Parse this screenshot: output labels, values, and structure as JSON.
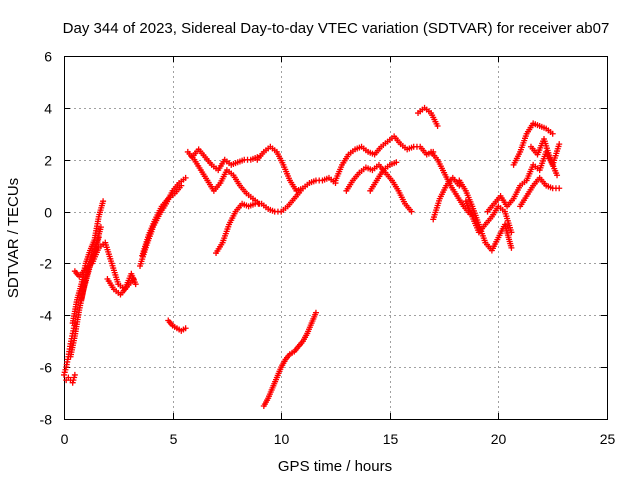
{
  "chart_data": {
    "type": "scatter",
    "title": "Day 344 of 2023, Sidereal Day-to-day VTEC variation (SDTVAR) for receiver ab07",
    "xlabel": "GPS time / hours",
    "ylabel": "SDTVAR / TECUs",
    "xlim": [
      0,
      25
    ],
    "ylim": [
      -8,
      6
    ],
    "xticks": [
      0,
      5,
      10,
      15,
      20,
      25
    ],
    "yticks": [
      -8,
      -6,
      -4,
      -2,
      0,
      2,
      4,
      6
    ],
    "xtick_labels": [
      "0",
      "5",
      "10",
      "15",
      "20",
      "25"
    ],
    "ytick_labels": [
      "-8",
      "-6",
      "-4",
      "-2",
      "0",
      "2",
      "4",
      "6"
    ],
    "grid": true,
    "marker": "+",
    "color": "#ff0000",
    "series": [
      {
        "name": "seg01",
        "x": [
          0.0,
          0.1,
          0.2,
          0.3,
          0.4,
          0.5
        ],
        "y": [
          -6.3,
          -6.0,
          -5.6,
          -5.1,
          -4.7,
          -4.3
        ]
      },
      {
        "name": "seg02",
        "x": [
          0.1,
          0.2,
          0.3,
          0.4,
          0.5
        ],
        "y": [
          -6.5,
          -6.4,
          -6.5,
          -6.6,
          -6.3
        ]
      },
      {
        "name": "seg03",
        "x": [
          0.3,
          0.5,
          0.7,
          0.9,
          1.1,
          1.3,
          1.5,
          1.7
        ],
        "y": [
          -5.6,
          -4.8,
          -3.8,
          -3.0,
          -2.4,
          -1.8,
          -1.2,
          -0.6
        ]
      },
      {
        "name": "seg04",
        "x": [
          0.4,
          0.6,
          0.8,
          1.0,
          1.2,
          1.4,
          1.6,
          1.8
        ],
        "y": [
          -4.3,
          -3.4,
          -2.8,
          -2.0,
          -1.5,
          -1.1,
          -0.2,
          0.4
        ]
      },
      {
        "name": "seg05",
        "x": [
          0.8,
          1.0,
          1.2,
          1.4,
          1.6
        ],
        "y": [
          -3.4,
          -2.6,
          -2.0,
          -1.6,
          -1.0
        ]
      },
      {
        "name": "seg06",
        "x": [
          0.5,
          0.7,
          1.0,
          1.3,
          1.6,
          1.9,
          2.2,
          2.5,
          2.8,
          3.1,
          3.3
        ],
        "y": [
          -2.3,
          -2.5,
          -2.2,
          -2.0,
          -1.4,
          -1.2,
          -2.0,
          -2.8,
          -3.0,
          -2.4,
          -2.8
        ]
      },
      {
        "name": "seg07",
        "x": [
          2.0,
          2.3,
          2.6,
          2.9,
          3.2
        ],
        "y": [
          -2.6,
          -3.0,
          -3.2,
          -2.9,
          -2.6
        ]
      },
      {
        "name": "seg08",
        "x": [
          3.5,
          3.8,
          4.1,
          4.4,
          4.7,
          5.0,
          5.3,
          5.6
        ],
        "y": [
          -2.1,
          -1.3,
          -0.6,
          -0.1,
          0.3,
          0.8,
          1.1,
          1.3
        ]
      },
      {
        "name": "seg09",
        "x": [
          3.6,
          3.9,
          4.2,
          4.5,
          4.8,
          5.1,
          5.4
        ],
        "y": [
          -1.7,
          -0.9,
          -0.3,
          0.2,
          0.5,
          0.7,
          1.0
        ]
      },
      {
        "name": "seg10",
        "x": [
          4.8,
          5.0,
          5.2,
          5.4,
          5.6
        ],
        "y": [
          -4.2,
          -4.4,
          -4.5,
          -4.6,
          -4.5
        ]
      },
      {
        "name": "seg11",
        "x": [
          5.7,
          6.0,
          6.3,
          6.6,
          6.9,
          7.2,
          7.5,
          7.8,
          8.1,
          8.4,
          8.7,
          9.0
        ],
        "y": [
          2.3,
          2.0,
          1.6,
          1.2,
          0.8,
          1.1,
          1.6,
          1.4,
          1.0,
          0.7,
          0.5,
          0.3
        ]
      },
      {
        "name": "seg12",
        "x": [
          5.9,
          6.2,
          6.5,
          6.8,
          7.1,
          7.4,
          7.7,
          8.0,
          8.3,
          8.6,
          8.9
        ],
        "y": [
          2.1,
          2.4,
          2.1,
          1.8,
          1.6,
          2.0,
          1.8,
          1.9,
          2.0,
          2.0,
          2.1
        ]
      },
      {
        "name": "seg13",
        "x": [
          7.0,
          7.3,
          7.6,
          7.9,
          8.2,
          8.5,
          8.8,
          9.1,
          9.4,
          9.7,
          10.0,
          10.3,
          10.6,
          10.9
        ],
        "y": [
          -1.6,
          -1.2,
          -0.5,
          0.0,
          0.3,
          0.2,
          0.3,
          0.3,
          0.1,
          0.0,
          0.0,
          0.2,
          0.5,
          0.8
        ]
      },
      {
        "name": "seg14",
        "x": [
          8.9,
          9.2,
          9.5,
          9.8,
          10.1,
          10.4,
          10.7,
          11.0,
          11.3,
          11.6,
          11.9,
          12.2,
          12.5
        ],
        "y": [
          2.0,
          2.3,
          2.5,
          2.3,
          1.8,
          1.2,
          0.8,
          0.9,
          1.1,
          1.2,
          1.2,
          1.3,
          1.1
        ]
      },
      {
        "name": "seg15",
        "x": [
          9.2,
          9.4,
          9.6,
          9.8,
          10.0,
          10.2,
          10.4,
          10.6,
          10.8,
          11.0,
          11.2,
          11.4,
          11.6
        ],
        "y": [
          -7.5,
          -7.2,
          -6.8,
          -6.4,
          -6.0,
          -5.7,
          -5.5,
          -5.4,
          -5.2,
          -5.0,
          -4.7,
          -4.3,
          -3.9
        ]
      },
      {
        "name": "seg16",
        "x": [
          12.5,
          12.8,
          13.1,
          13.4,
          13.7,
          14.0,
          14.3,
          14.6,
          14.9,
          15.2,
          15.5,
          15.8,
          16.1,
          16.4,
          16.7,
          17.0
        ],
        "y": [
          1.2,
          1.8,
          2.2,
          2.4,
          2.5,
          2.3,
          2.2,
          2.5,
          2.7,
          2.9,
          2.6,
          2.4,
          2.5,
          2.5,
          2.2,
          2.3
        ]
      },
      {
        "name": "seg17",
        "x": [
          13.0,
          13.3,
          13.6,
          13.9,
          14.2,
          14.5,
          14.8,
          15.1,
          15.4,
          15.7,
          16.0
        ],
        "y": [
          0.8,
          1.2,
          1.5,
          1.7,
          1.6,
          1.8,
          1.5,
          1.2,
          0.8,
          0.3,
          0.0
        ]
      },
      {
        "name": "seg18",
        "x": [
          14.1,
          14.4,
          14.7,
          15.0,
          15.3
        ],
        "y": [
          0.8,
          1.2,
          1.6,
          1.8,
          1.9
        ]
      },
      {
        "name": "seg19",
        "x": [
          16.3,
          16.6,
          16.9,
          17.2
        ],
        "y": [
          3.8,
          4.0,
          3.8,
          3.3
        ]
      },
      {
        "name": "seg20",
        "x": [
          16.9,
          17.2,
          17.5,
          17.8,
          18.1,
          18.4,
          18.7
        ],
        "y": [
          2.3,
          2.0,
          1.5,
          1.0,
          0.6,
          0.2,
          -0.1
        ]
      },
      {
        "name": "seg21",
        "x": [
          17.0,
          17.3,
          17.6,
          17.9,
          18.2
        ],
        "y": [
          -0.3,
          0.5,
          1.0,
          1.3,
          1.0
        ]
      },
      {
        "name": "seg22",
        "x": [
          18.2,
          18.5,
          18.8,
          19.1,
          19.4,
          19.7,
          20.0,
          20.3,
          20.6
        ],
        "y": [
          1.2,
          0.8,
          0.2,
          -0.5,
          -1.2,
          -1.5,
          -1.0,
          -0.5,
          -1.4
        ]
      },
      {
        "name": "seg23",
        "x": [
          18.5,
          18.8,
          19.1,
          19.4,
          19.7,
          20.0,
          20.3,
          20.6
        ],
        "y": [
          0.4,
          -0.2,
          -0.8,
          -0.5,
          -0.2,
          0.2,
          0.0,
          -0.8
        ]
      },
      {
        "name": "seg24",
        "x": [
          19.5,
          19.8,
          20.1,
          20.4,
          20.7,
          21.0,
          21.3,
          21.6,
          21.9,
          22.2,
          22.5,
          22.8
        ],
        "y": [
          0.0,
          0.3,
          0.6,
          0.2,
          0.5,
          1.0,
          1.2,
          1.8,
          1.6,
          2.3,
          1.8,
          2.6
        ]
      },
      {
        "name": "seg25",
        "x": [
          20.7,
          21.0,
          21.3,
          21.6,
          21.9,
          22.2,
          22.5
        ],
        "y": [
          1.8,
          2.3,
          3.0,
          3.4,
          3.3,
          3.2,
          3.0
        ]
      },
      {
        "name": "seg26",
        "x": [
          21.0,
          21.3,
          21.6,
          21.9,
          22.2,
          22.5,
          22.8
        ],
        "y": [
          0.2,
          0.6,
          1.0,
          1.3,
          1.0,
          0.9,
          0.9
        ]
      },
      {
        "name": "seg27",
        "x": [
          21.5,
          21.8,
          22.1,
          22.4,
          22.7
        ],
        "y": [
          2.5,
          2.2,
          2.8,
          2.0,
          1.4
        ]
      }
    ]
  }
}
